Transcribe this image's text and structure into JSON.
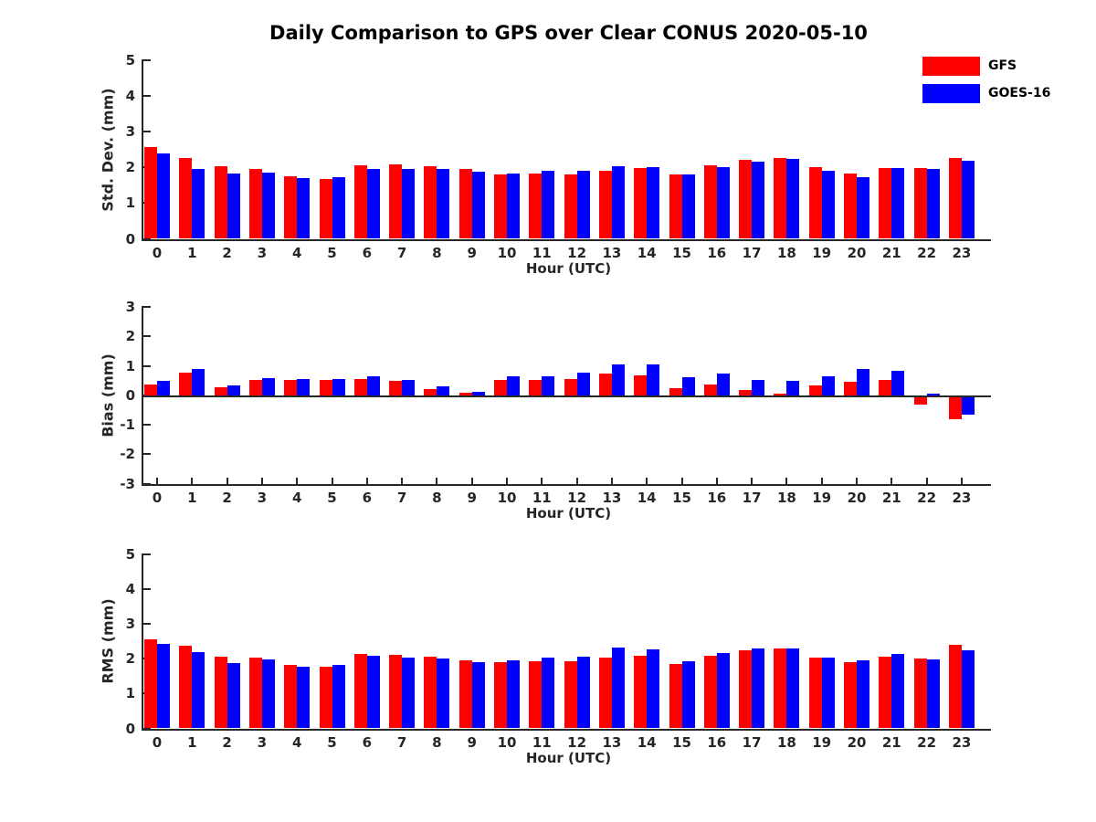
{
  "title": "Daily Comparison to GPS over Clear CONUS 2020-05-10",
  "legend": [
    {
      "label": "GFS",
      "color": "#ff0000"
    },
    {
      "label": "GOES-16",
      "color": "#0000ff"
    }
  ],
  "axis_color": "#262626",
  "chart_data": [
    {
      "type": "bar",
      "title": "",
      "ylabel": "Std. Dev. (mm)",
      "xlabel": "Hour (UTC)",
      "ylim": [
        0,
        5
      ],
      "yticks": [
        0,
        1,
        2,
        3,
        4,
        5
      ],
      "categories": [
        0,
        1,
        2,
        3,
        4,
        5,
        6,
        7,
        8,
        9,
        10,
        11,
        12,
        13,
        14,
        15,
        16,
        17,
        18,
        19,
        20,
        21,
        22,
        23
      ],
      "grid": false,
      "legend_position": "outside-top-right",
      "series": [
        {
          "name": "GFS",
          "color": "#ff0000",
          "values": [
            2.56,
            2.25,
            2.02,
            1.96,
            1.76,
            1.67,
            2.06,
            2.07,
            2.03,
            1.94,
            1.8,
            1.82,
            1.79,
            1.89,
            1.98,
            1.81,
            2.06,
            2.2,
            2.27,
            1.99,
            1.83,
            1.97,
            1.97,
            2.27
          ]
        },
        {
          "name": "GOES-16",
          "color": "#0000ff",
          "values": [
            2.38,
            1.96,
            1.82,
            1.86,
            1.7,
            1.73,
            1.95,
            1.96,
            1.96,
            1.87,
            1.82,
            1.91,
            1.9,
            2.02,
            2.0,
            1.81,
            2.01,
            2.15,
            2.22,
            1.91,
            1.73,
            1.97,
            1.95,
            2.17
          ]
        }
      ]
    },
    {
      "type": "bar",
      "title": "",
      "ylabel": "Bias (mm)",
      "xlabel": "Hour (UTC)",
      "ylim": [
        -3,
        3
      ],
      "yticks": [
        3,
        2,
        1,
        0,
        -1,
        -2,
        -3
      ],
      "categories": [
        0,
        1,
        2,
        3,
        4,
        5,
        6,
        7,
        8,
        9,
        10,
        11,
        12,
        13,
        14,
        15,
        16,
        17,
        18,
        19,
        20,
        21,
        22,
        23
      ],
      "grid": false,
      "legend_position": "none",
      "series": [
        {
          "name": "GFS",
          "color": "#ff0000",
          "values": [
            0.35,
            0.77,
            0.27,
            0.53,
            0.52,
            0.52,
            0.55,
            0.5,
            0.22,
            0.08,
            0.53,
            0.52,
            0.55,
            0.74,
            0.68,
            0.25,
            0.37,
            0.18,
            0.06,
            0.32,
            0.45,
            0.52,
            -0.24,
            -0.73
          ]
        },
        {
          "name": "GOES-16",
          "color": "#0000ff",
          "values": [
            0.48,
            0.89,
            0.32,
            0.58,
            0.56,
            0.54,
            0.63,
            0.52,
            0.29,
            0.12,
            0.63,
            0.63,
            0.76,
            1.05,
            1.05,
            0.61,
            0.73,
            0.53,
            0.49,
            0.65,
            0.89,
            0.84,
            0.05,
            -0.57
          ]
        }
      ]
    },
    {
      "type": "bar",
      "title": "",
      "ylabel": "RMS (mm)",
      "xlabel": "Hour (UTC)",
      "ylim": [
        0,
        5
      ],
      "yticks": [
        0,
        1,
        2,
        3,
        4,
        5
      ],
      "categories": [
        0,
        1,
        2,
        3,
        4,
        5,
        6,
        7,
        8,
        9,
        10,
        11,
        12,
        13,
        14,
        15,
        16,
        17,
        18,
        19,
        20,
        21,
        22,
        23
      ],
      "grid": false,
      "legend_position": "none",
      "series": [
        {
          "name": "GFS",
          "color": "#ff0000",
          "values": [
            2.56,
            2.38,
            2.05,
            2.04,
            1.81,
            1.77,
            2.14,
            2.12,
            2.06,
            1.94,
            1.89,
            1.92,
            1.92,
            2.03,
            2.09,
            1.85,
            2.07,
            2.23,
            2.3,
            2.04,
            1.91,
            2.06,
            2.01,
            2.4
          ]
        },
        {
          "name": "GOES-16",
          "color": "#0000ff",
          "values": [
            2.43,
            2.18,
            1.87,
            1.97,
            1.78,
            1.81,
            2.08,
            2.04,
            1.99,
            1.89,
            1.94,
            2.04,
            2.06,
            2.32,
            2.27,
            1.93,
            2.17,
            2.28,
            2.29,
            2.04,
            1.94,
            2.14,
            1.97,
            2.23
          ]
        }
      ]
    }
  ]
}
